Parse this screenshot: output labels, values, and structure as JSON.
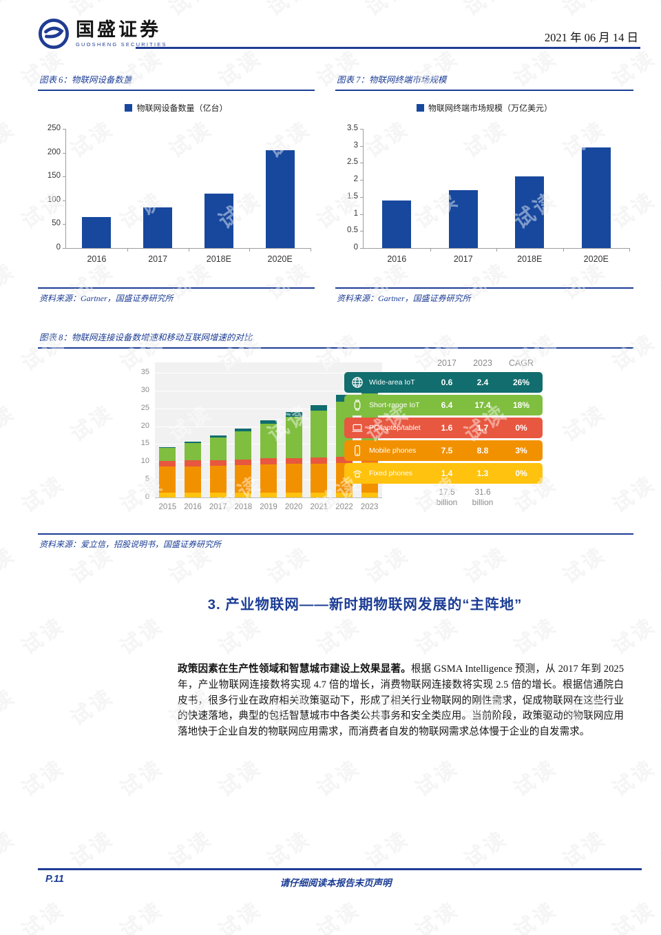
{
  "watermark": {
    "text": "试读"
  },
  "header": {
    "logo_cn": "国盛证券",
    "logo_en": "GUOSHENG SECURITIES",
    "date": "2021 年 06 月 14 日",
    "accent_color": "#1F3C93"
  },
  "figures": {
    "fig6": {
      "caption": "图表 6：物联网设备数量",
      "source": "资料来源：Gartner，国盛证券研究所"
    },
    "fig7": {
      "caption": "图表 7：物联网终端市场规模",
      "source": "资料来源：Gartner，国盛证券研究所"
    },
    "fig8": {
      "caption": "图表 8：物联网连接设备数增速和移动互联网增速的对比",
      "source": "资料来源：爱立信，招股说明书，国盛证券研究所"
    }
  },
  "chart_data": [
    {
      "id": "iot-devices",
      "type": "bar",
      "title": "物联网设备数量",
      "legend": "物联网设备数量（亿台）",
      "categories": [
        "2016",
        "2017",
        "2018E",
        "2020E"
      ],
      "values": [
        65,
        86,
        114,
        205
      ],
      "ylim": [
        0,
        250
      ],
      "yticks": [
        0,
        50,
        100,
        150,
        200,
        250
      ],
      "bar_color": "#17489E",
      "grid": false,
      "legend_position": "top"
    },
    {
      "id": "iot-market",
      "type": "bar",
      "title": "物联网终端市场规模",
      "legend": "物联网终端市场规模（万亿美元）",
      "categories": [
        "2016",
        "2017",
        "2018E",
        "2020E"
      ],
      "values": [
        1.4,
        1.7,
        2.1,
        2.95
      ],
      "ylim": [
        0,
        3.5
      ],
      "yticks": [
        0,
        0.5,
        1,
        1.5,
        2,
        2.5,
        3,
        3.5
      ],
      "bar_color": "#17489E",
      "grid": false,
      "legend_position": "top"
    },
    {
      "id": "iot-connections",
      "type": "stacked-bar",
      "title": "物联网连接设备数增速和移动互联网增速的对比",
      "categories": [
        "2015",
        "2016",
        "2017",
        "2018",
        "2019",
        "2020",
        "2021",
        "2022",
        "2023"
      ],
      "series": [
        {
          "name": "Fixed phones",
          "color": "#FFC20E",
          "values": [
            1.4,
            1.4,
            1.4,
            1.4,
            1.4,
            1.4,
            1.3,
            1.3,
            1.3
          ]
        },
        {
          "name": "Mobile phones",
          "color": "#F29100",
          "values": [
            7.3,
            7.4,
            7.5,
            7.7,
            7.9,
            8.0,
            8.2,
            8.4,
            8.8
          ]
        },
        {
          "name": "PC/laptop/tablet",
          "color": "#E8573F",
          "values": [
            1.6,
            1.6,
            1.6,
            1.6,
            1.7,
            1.7,
            1.7,
            1.7,
            1.7
          ]
        },
        {
          "name": "Short-range IoT",
          "color": "#7FBE3F",
          "values": [
            3.6,
            4.8,
            6.4,
            7.8,
            9.7,
            11.6,
            13.2,
            15.4,
            17.4
          ]
        },
        {
          "name": "Wide-area IoT",
          "color": "#116D6E",
          "values": [
            0.2,
            0.4,
            0.6,
            0.8,
            1.0,
            1.3,
            1.6,
            2.0,
            2.4
          ]
        }
      ],
      "ylim": [
        0,
        35
      ],
      "yticks": [
        0,
        5,
        10,
        15,
        20,
        25,
        30,
        35
      ],
      "grid": true,
      "table": {
        "headers": [
          "2017",
          "2023",
          "CAGR"
        ],
        "rows": [
          {
            "label": "Wide-area IoT",
            "icon": "globe-icon",
            "color": "#116D6E",
            "values": [
              "0.6",
              "2.4",
              "26%"
            ]
          },
          {
            "label": "Short-range IoT",
            "icon": "watch-icon",
            "color": "#7FBE3F",
            "values": [
              "6.4",
              "17.4",
              "18%"
            ]
          },
          {
            "label": "PC/laptop/tablet",
            "icon": "laptop-icon",
            "color": "#E8573F",
            "values": [
              "1.6",
              "1.7",
              "0%"
            ]
          },
          {
            "label": "Mobile phones",
            "icon": "mobile-icon",
            "color": "#F29100",
            "values": [
              "7.5",
              "8.8",
              "3%"
            ]
          },
          {
            "label": "Fixed phones",
            "icon": "fixed-phone-icon",
            "color": "#FFC20E",
            "values": [
              "1.4",
              "1.3",
              "0%"
            ]
          }
        ],
        "totals": [
          {
            "value": "17.5",
            "unit": "billion"
          },
          {
            "value": "31.6",
            "unit": "billion"
          }
        ]
      }
    }
  ],
  "section": {
    "heading": "3. 产业物联网——新时期物联网发展的“主阵地”",
    "lead": "政策因素在生产性领域和智慧城市建设上效果显著。",
    "body": "根据 GSMA Intelligence 预测，从 2017 年到 2025 年，产业物联网连接数将实现 4.7 倍的增长，消费物联网连接数将实现 2.5 倍的增长。根据信通院白皮书，很多行业在政府相关政策驱动下，形成了相关行业物联网的刚性需求，促成物联网在这些行业的快速落地，典型的包括智慧城市中各类公共事务和安全类应用。当前阶段，政策驱动的物联网应用落地快于企业自发的物联网应用需求，而消费者自发的物联网需求总体慢于企业的自发需求。"
  },
  "footer": {
    "page": "P.11",
    "disclaimer": "请仔细阅读本报告末页声明"
  }
}
